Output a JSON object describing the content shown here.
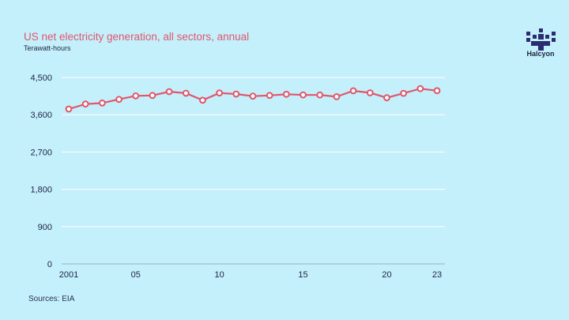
{
  "chart_data": {
    "type": "line",
    "title": "US net electricity generation, all sectors, annual",
    "subtitle": "Terawatt-hours",
    "source": "Sources: EIA",
    "x": [
      2001,
      2002,
      2003,
      2004,
      2005,
      2006,
      2007,
      2008,
      2009,
      2010,
      2011,
      2012,
      2013,
      2014,
      2015,
      2016,
      2017,
      2018,
      2019,
      2020,
      2021,
      2022,
      2023
    ],
    "series": [
      {
        "values": [
          3737,
          3858,
          3883,
          3971,
          4055,
          4065,
          4157,
          4119,
          3950,
          4125,
          4100,
          4048,
          4066,
          4094,
          4078,
          4077,
          4035,
          4178,
          4128,
          4010,
          4116,
          4230,
          4180
        ]
      }
    ],
    "x_ticks": [
      "2001",
      "05",
      "10",
      "15",
      "20",
      "23"
    ],
    "x_tick_values": [
      2001,
      2005,
      2010,
      2015,
      2020,
      2023
    ],
    "y_ticks": [
      "0",
      "900",
      "1,800",
      "2,700",
      "3,600",
      "4,500"
    ],
    "y_tick_values": [
      0,
      900,
      1800,
      2700,
      3600,
      4500
    ],
    "ylim": [
      0,
      4500
    ],
    "grid": true,
    "line_color": "#e0566b",
    "marker_fill": "#ffffff"
  },
  "brand": {
    "name": "Halcyon",
    "logo_icon": "pixel-cross-logo-icon",
    "color": "#2b2d6e"
  }
}
